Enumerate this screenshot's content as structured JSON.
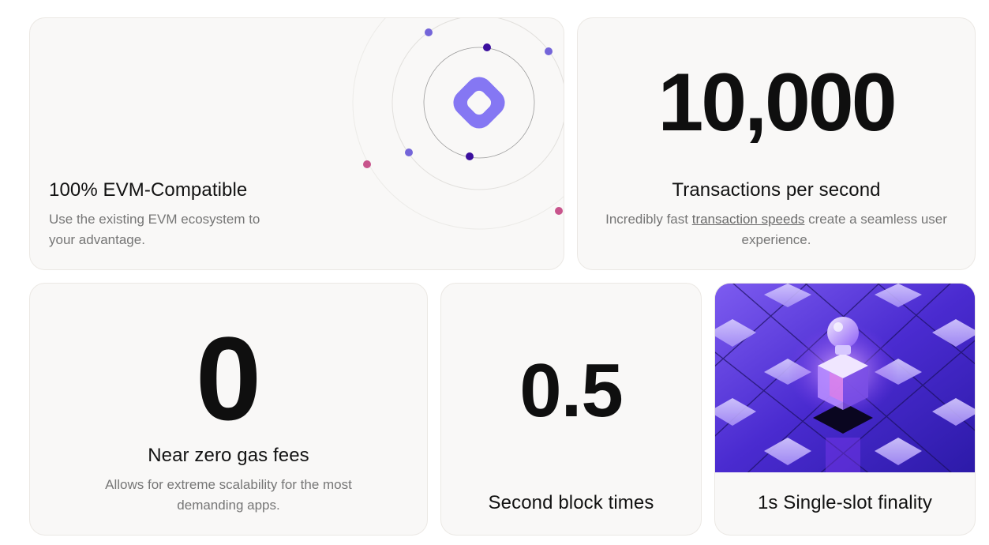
{
  "cards": {
    "evm": {
      "title": "100% EVM-Compatible",
      "description": "Use the existing EVM ecosystem to your advantage."
    },
    "tps": {
      "stat": "10,000",
      "title": "Transactions per second",
      "desc_before": "Incredibly fast ",
      "desc_link": "transaction speeds",
      "desc_after": " create a seamless user experience."
    },
    "gas": {
      "stat": "0",
      "title": "Near zero gas fees",
      "description": "Allows for extreme scalability for the most demanding apps."
    },
    "block": {
      "stat": "0.5",
      "title": "Second block times"
    },
    "finality": {
      "title": "1s Single-slot finality",
      "image": "isometric-cube-tiles-illustration"
    }
  },
  "colors": {
    "accent": "#7c6cf0",
    "card_bg": "#f9f8f7",
    "illustration_bg": "#5b36d4"
  }
}
